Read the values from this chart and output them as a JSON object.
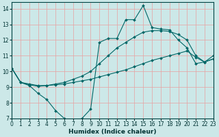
{
  "xlabel": "Humidex (Indice chaleur)",
  "xlim": [
    0,
    23
  ],
  "ylim": [
    7,
    14.4
  ],
  "yticks": [
    7,
    8,
    9,
    10,
    11,
    12,
    13,
    14
  ],
  "xticks": [
    0,
    1,
    2,
    3,
    4,
    5,
    6,
    7,
    8,
    9,
    10,
    11,
    12,
    13,
    14,
    15,
    16,
    17,
    18,
    19,
    20,
    21,
    22,
    23
  ],
  "bg_color": "#cce8e8",
  "grid_color": "#e8a0a0",
  "line_color": "#006666",
  "lines": [
    {
      "x": [
        0,
        1,
        2,
        3,
        4,
        5,
        6,
        7,
        8,
        9,
        10,
        11,
        12,
        13,
        14,
        15,
        16,
        17,
        18,
        19,
        20,
        21,
        22,
        23
      ],
      "y": [
        10.2,
        9.3,
        9.1,
        8.6,
        8.2,
        7.5,
        7.0,
        6.85,
        7.0,
        7.6,
        11.85,
        12.1,
        12.1,
        13.3,
        13.3,
        14.2,
        12.8,
        12.7,
        12.65,
        12.0,
        11.5,
        10.5,
        10.6,
        11.0
      ]
    },
    {
      "x": [
        0,
        1,
        2,
        3,
        4,
        5,
        6,
        7,
        8,
        9,
        10,
        11,
        12,
        13,
        14,
        15,
        16,
        17,
        18,
        19,
        20,
        21,
        22,
        23
      ],
      "y": [
        10.2,
        9.3,
        9.15,
        9.05,
        9.1,
        9.15,
        9.2,
        9.3,
        9.4,
        9.5,
        9.65,
        9.8,
        9.95,
        10.1,
        10.3,
        10.5,
        10.7,
        10.85,
        11.0,
        11.15,
        11.3,
        10.9,
        10.6,
        10.8
      ]
    },
    {
      "x": [
        0,
        1,
        2,
        3,
        4,
        5,
        6,
        7,
        8,
        9,
        10,
        11,
        12,
        13,
        14,
        15,
        16,
        17,
        18,
        19,
        20,
        21,
        22,
        23
      ],
      "y": [
        10.2,
        9.3,
        9.2,
        9.1,
        9.1,
        9.2,
        9.3,
        9.5,
        9.7,
        10.0,
        10.5,
        11.0,
        11.5,
        11.85,
        12.2,
        12.5,
        12.6,
        12.6,
        12.55,
        12.35,
        12.0,
        11.0,
        10.6,
        10.8
      ]
    }
  ]
}
